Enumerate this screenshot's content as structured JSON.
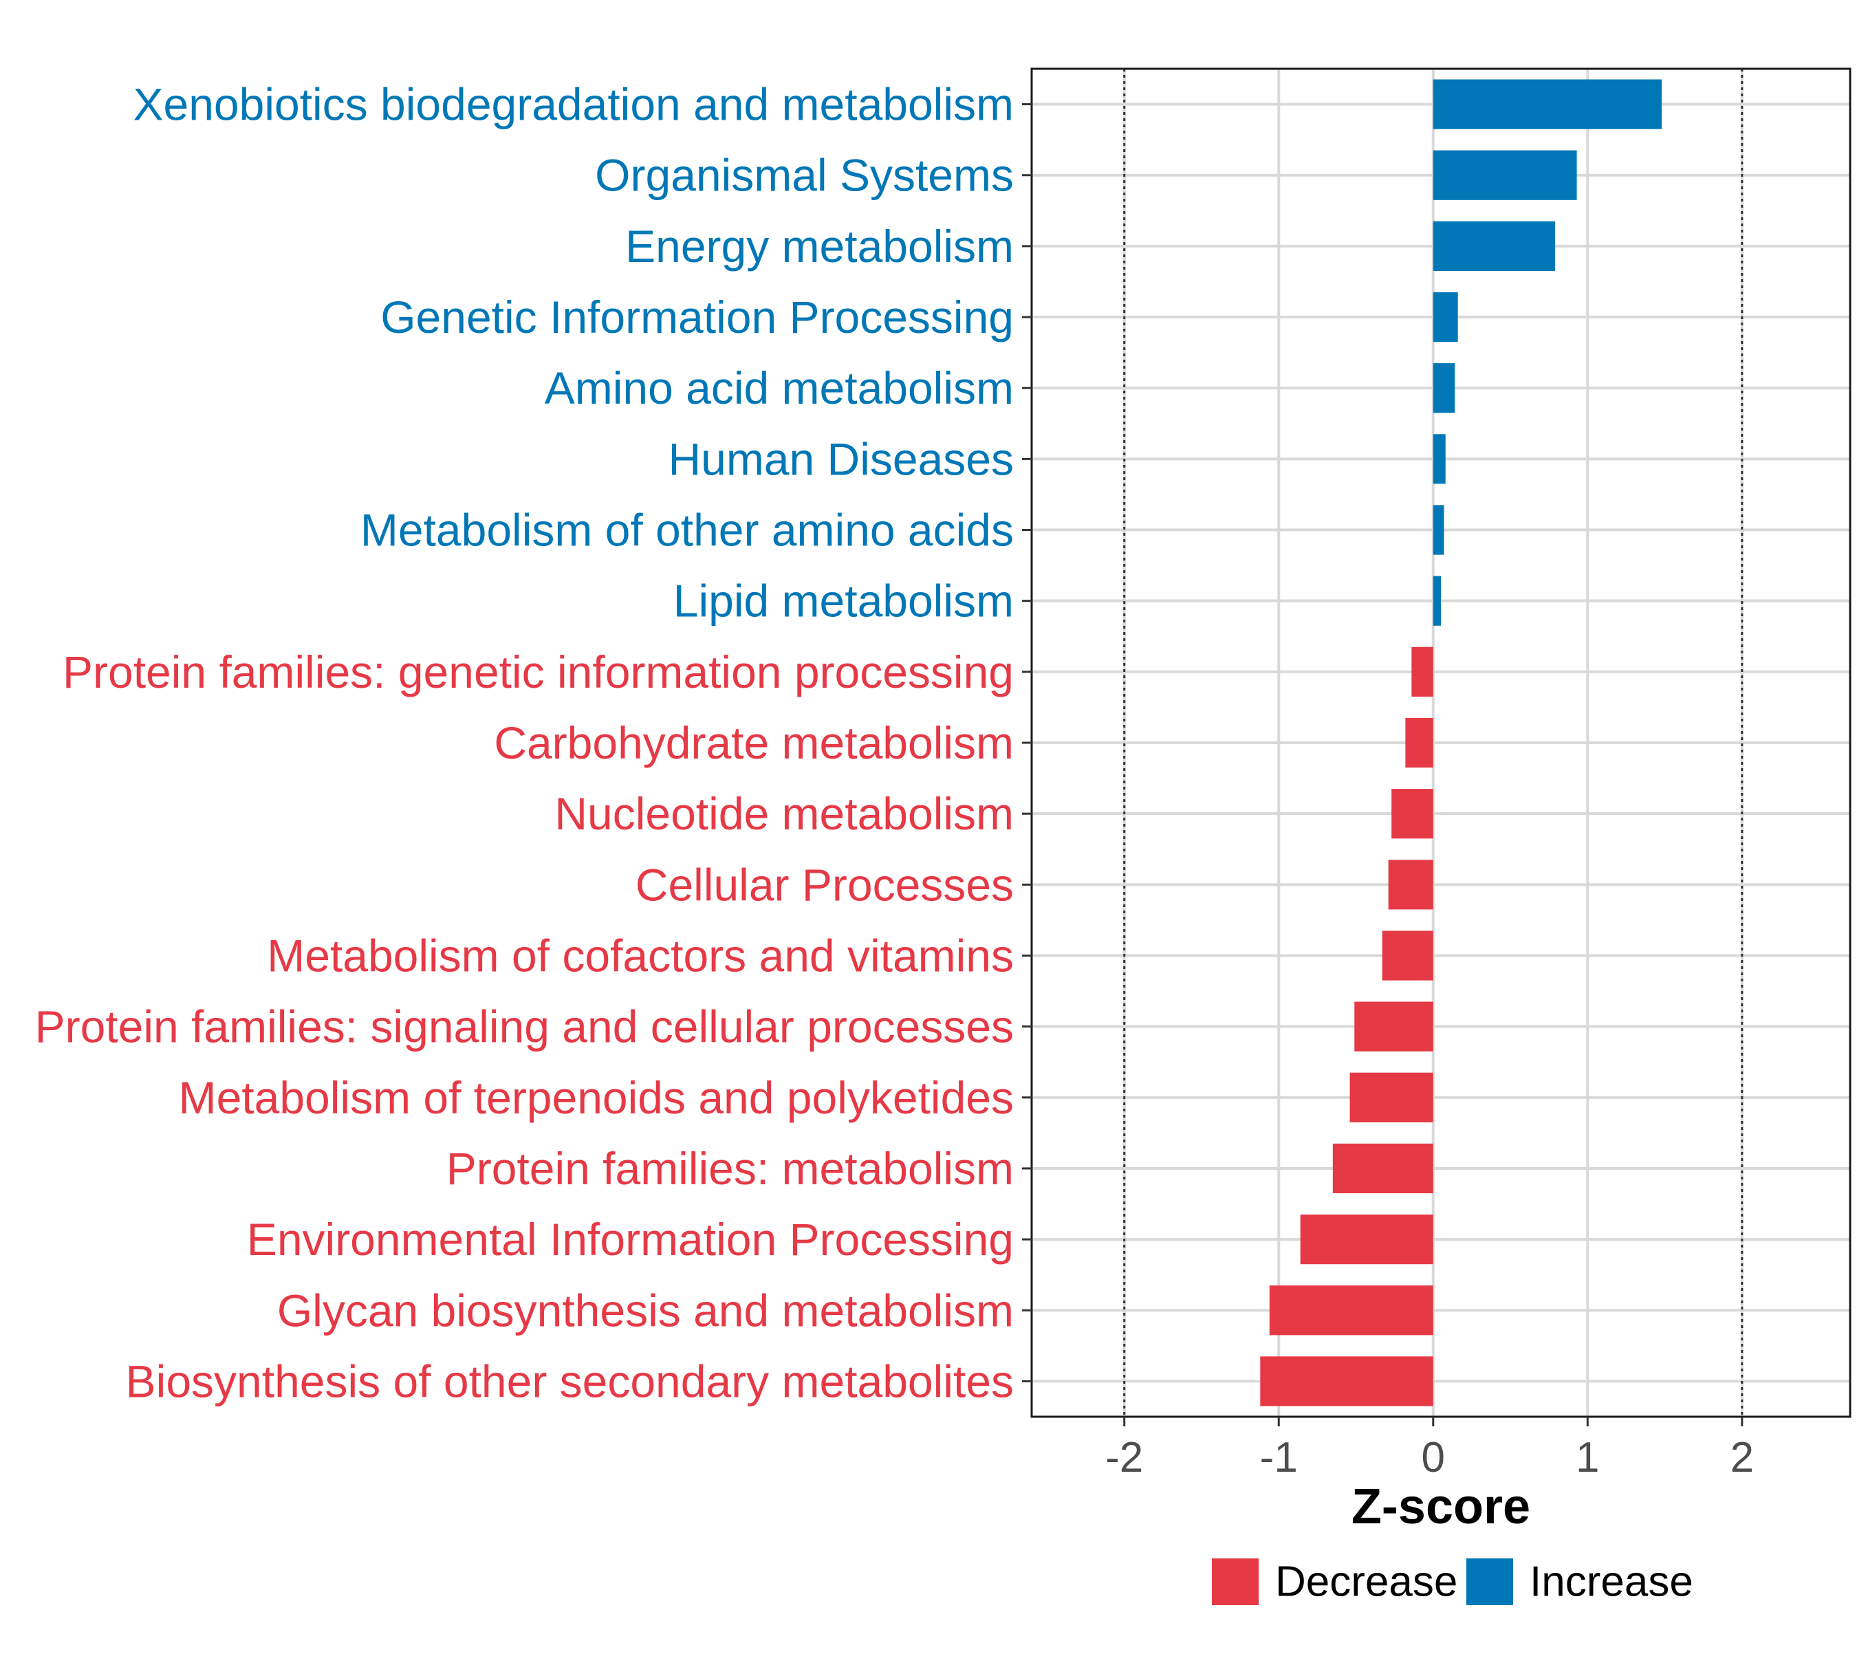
{
  "chart_data": {
    "type": "bar",
    "orientation": "horizontal",
    "xlabel": "Z-score",
    "xlim": [
      -2.6,
      2.7
    ],
    "xticks": [
      -2,
      -1,
      0,
      1,
      2
    ],
    "xtick_labels": [
      "-2",
      "-1",
      "0",
      "1",
      "2"
    ],
    "reference_lines": [
      -2,
      2
    ],
    "grid": true,
    "categories": [
      "Xenobiotics biodegradation and metabolism",
      "Organismal Systems",
      "Energy metabolism",
      "Genetic Information Processing",
      "Amino acid metabolism",
      "Human Diseases",
      "Metabolism of other amino acids",
      "Lipid metabolism",
      "Protein families: genetic information processing",
      "Carbohydrate metabolism",
      "Nucleotide metabolism",
      "Cellular Processes",
      "Metabolism of cofactors and vitamins",
      "Protein families: signaling and cellular processes",
      "Metabolism of terpenoids and polyketides",
      "Protein families: metabolism",
      "Environmental Information Processing",
      "Glycan biosynthesis and metabolism",
      "Biosynthesis of other secondary metabolites"
    ],
    "values": [
      1.48,
      0.93,
      0.79,
      0.16,
      0.14,
      0.08,
      0.07,
      0.05,
      -0.14,
      -0.18,
      -0.27,
      -0.29,
      -0.33,
      -0.51,
      -0.54,
      -0.65,
      -0.86,
      -1.06,
      -1.12
    ],
    "groups": [
      "Increase",
      "Increase",
      "Increase",
      "Increase",
      "Increase",
      "Increase",
      "Increase",
      "Increase",
      "Decrease",
      "Decrease",
      "Decrease",
      "Decrease",
      "Decrease",
      "Decrease",
      "Decrease",
      "Decrease",
      "Decrease",
      "Decrease",
      "Decrease"
    ],
    "legend": {
      "position": "bottom",
      "entries": [
        {
          "label": "Decrease",
          "color": "#e63946"
        },
        {
          "label": "Increase",
          "color": "#0077b6"
        }
      ]
    },
    "colors": {
      "Increase": "#0077b6",
      "Decrease": "#e63946"
    }
  }
}
